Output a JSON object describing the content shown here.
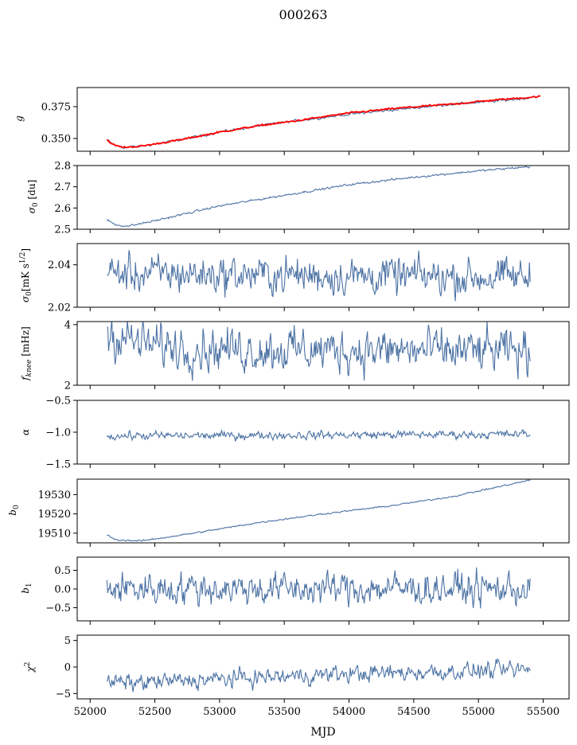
{
  "title": "000263",
  "chart_data": [
    {
      "type": "line",
      "ylabel": "g",
      "ylim": [
        0.34,
        0.39
      ],
      "yticks": [
        0.35,
        0.375
      ],
      "yticklabels": [
        "0.350",
        "0.375"
      ],
      "series": [
        {
          "color": "#4c72a4",
          "anchors": [
            [
              52130,
              0.349
            ],
            [
              52180,
              0.345
            ],
            [
              52250,
              0.343
            ],
            [
              52400,
              0.344
            ],
            [
              52700,
              0.349
            ],
            [
              53000,
              0.355
            ],
            [
              53300,
              0.36
            ],
            [
              53600,
              0.364
            ],
            [
              54000,
              0.369
            ],
            [
              54400,
              0.373
            ],
            [
              54800,
              0.377
            ],
            [
              55100,
              0.379
            ],
            [
              55400,
              0.382
            ]
          ],
          "noise": 0.0006
        },
        {
          "color": "#ff0000",
          "anchors": [
            [
              52130,
              0.349
            ],
            [
              52180,
              0.345
            ],
            [
              52250,
              0.343
            ],
            [
              52400,
              0.344
            ],
            [
              52700,
              0.349
            ],
            [
              53000,
              0.355
            ],
            [
              53300,
              0.36
            ],
            [
              53600,
              0.364
            ],
            [
              54000,
              0.37
            ],
            [
              54400,
              0.374
            ],
            [
              54800,
              0.377
            ],
            [
              55100,
              0.38
            ],
            [
              55480,
              0.383
            ]
          ],
          "noise": 0.0004
        }
      ]
    },
    {
      "type": "line",
      "ylabel": "σ0 [du]",
      "ylim": [
        2.5,
        2.8
      ],
      "yticks": [
        2.5,
        2.6,
        2.7,
        2.8
      ],
      "yticklabels": [
        "2.5",
        "2.6",
        "2.7",
        "2.8"
      ],
      "series": [
        {
          "color": "#4c72a4",
          "anchors": [
            [
              52130,
              2.545
            ],
            [
              52200,
              2.52
            ],
            [
              52300,
              2.515
            ],
            [
              52500,
              2.54
            ],
            [
              53000,
              2.61
            ],
            [
              53500,
              2.66
            ],
            [
              54000,
              2.71
            ],
            [
              54500,
              2.745
            ],
            [
              55000,
              2.775
            ],
            [
              55400,
              2.795
            ]
          ],
          "noise": 0.003
        }
      ]
    },
    {
      "type": "line",
      "ylabel": "σ0[mK s^1/2]",
      "ylim": [
        2.02,
        2.05
      ],
      "yticks": [
        2.02,
        2.04
      ],
      "yticklabels": [
        "2.02",
        "2.04"
      ],
      "series": [
        {
          "color": "#4c72a4",
          "anchors": [
            [
              52130,
              2.036
            ],
            [
              55400,
              2.034
            ]
          ],
          "noise": 0.0055
        }
      ]
    },
    {
      "type": "line",
      "ylabel": "f_knee [mHz]",
      "ylim": [
        2,
        4.1
      ],
      "yticks": [
        2,
        4
      ],
      "yticklabels": [
        "2",
        "4"
      ],
      "series": [
        {
          "color": "#4c72a4",
          "anchors": [
            [
              52130,
              3.75
            ],
            [
              52400,
              3.35
            ],
            [
              53000,
              3.2
            ],
            [
              54000,
              3.15
            ],
            [
              55400,
              3.1
            ]
          ],
          "noise": 0.45
        }
      ]
    },
    {
      "type": "line",
      "ylabel": "α",
      "ylim": [
        -1.5,
        -0.5
      ],
      "yticks": [
        -1.5,
        -1.0,
        -0.5
      ],
      "yticklabels": [
        "−1.5",
        "−1.0",
        "−0.5"
      ],
      "series": [
        {
          "color": "#4c72a4",
          "anchors": [
            [
              52130,
              -1.06
            ],
            [
              55400,
              -1.03
            ]
          ],
          "noise": 0.04
        }
      ]
    },
    {
      "type": "line",
      "ylabel": "b0",
      "ylim": [
        19505,
        19538
      ],
      "yticks": [
        19510,
        19520,
        19530
      ],
      "yticklabels": [
        "19510",
        "19520",
        "19530"
      ],
      "series": [
        {
          "color": "#4c72a4",
          "anchors": [
            [
              52130,
              19509
            ],
            [
              52200,
              19506.5
            ],
            [
              52400,
              19506
            ],
            [
              52800,
              19510
            ],
            [
              53300,
              19515.5
            ],
            [
              53800,
              19520
            ],
            [
              54300,
              19524
            ],
            [
              54800,
              19529
            ],
            [
              55400,
              19537.5
            ]
          ],
          "noise": 0.25
        }
      ]
    },
    {
      "type": "line",
      "ylabel": "b1",
      "ylim": [
        -0.85,
        0.85
      ],
      "yticks": [
        -0.5,
        0.0,
        0.5
      ],
      "yticklabels": [
        "−0.5",
        "0.0",
        "0.5"
      ],
      "series": [
        {
          "color": "#4c72a4",
          "anchors": [
            [
              52130,
              0.02
            ],
            [
              55400,
              0.0
            ]
          ],
          "noise": 0.27
        }
      ]
    },
    {
      "type": "line",
      "ylabel": "χ²",
      "ylim": [
        -6,
        6
      ],
      "yticks": [
        -5,
        0,
        5
      ],
      "yticklabels": [
        "−5",
        "0",
        "5"
      ],
      "series": [
        {
          "color": "#4c72a4",
          "anchors": [
            [
              52130,
              -2.8
            ],
            [
              52300,
              -3.0
            ],
            [
              53000,
              -2.3
            ],
            [
              54000,
              -1.3
            ],
            [
              55400,
              -0.5
            ]
          ],
          "noise": 1.0
        }
      ]
    }
  ],
  "x": {
    "lim": [
      51900,
      55700
    ],
    "ticks": [
      52000,
      52500,
      53000,
      53500,
      54000,
      54500,
      55000,
      55500
    ],
    "ticklabels": [
      "52000",
      "52500",
      "53000",
      "53500",
      "54000",
      "54500",
      "55000",
      "55500"
    ],
    "label": "MJD"
  }
}
